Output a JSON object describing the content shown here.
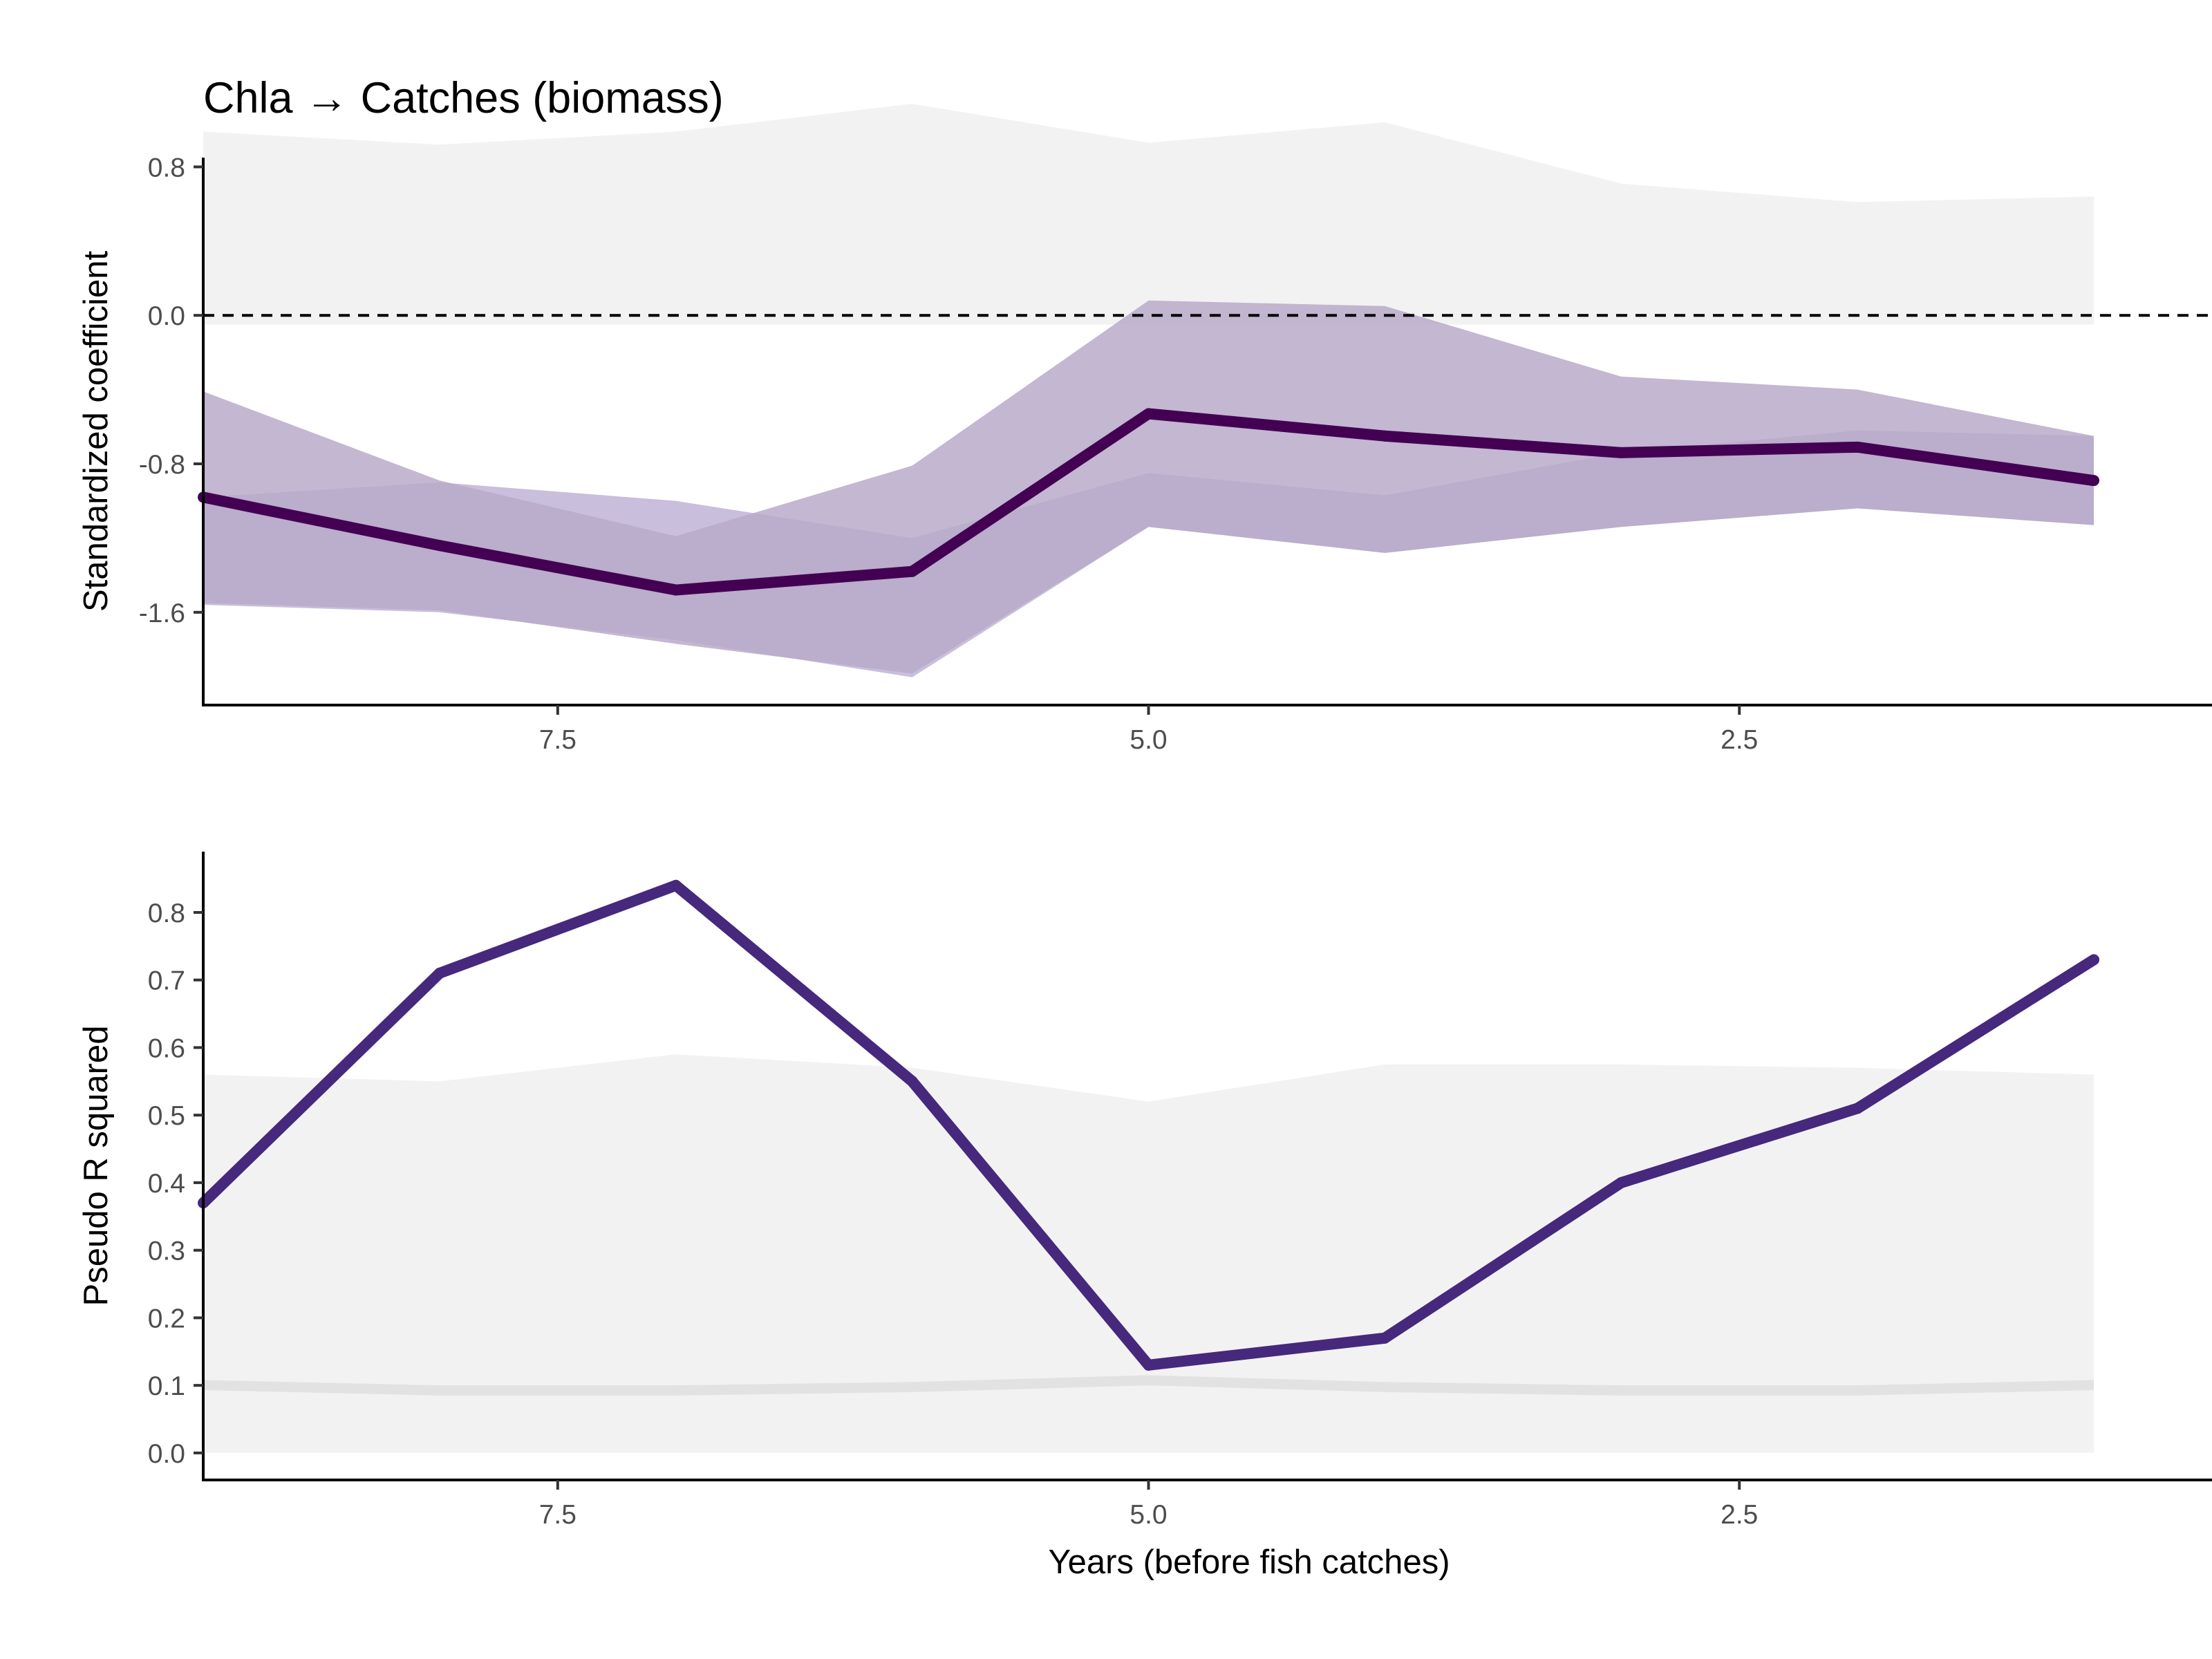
{
  "title": "Chla → Catches (biomass)",
  "colors": {
    "null_band": "#f2f2f2",
    "null_band_inner": "#e2e2e2",
    "ci_outer": "#c9bedb",
    "ci_inner": "#b8aac9",
    "coef_line": "#440154",
    "r2_line": "#46287d",
    "zero_line": "#000000",
    "axis": "#000000"
  },
  "chart_data": [
    {
      "type": "line",
      "panel": "top",
      "xlabel": "",
      "ylabel": "Standardized coefficient",
      "x_reversed": true,
      "xlim": [
        0.5,
        9.0
      ],
      "ylim": [
        -2.1,
        0.85
      ],
      "x_ticks": [
        7.5,
        5.0,
        2.5
      ],
      "x_tick_labels": [
        "7.5",
        "5.0",
        "2.5"
      ],
      "y_ticks": [
        0.8,
        0.0,
        -0.8,
        -1.6
      ],
      "y_tick_labels": [
        "0.8",
        "0.0",
        "-0.8",
        "-1.6"
      ],
      "reference_line": 0.0,
      "x": [
        9,
        8,
        7,
        6,
        5,
        4,
        3,
        2,
        1
      ],
      "series": [
        {
          "values": [
            -0.98,
            -1.24,
            -1.48,
            -1.38,
            -0.53,
            -0.65,
            -0.74,
            -0.71,
            -0.89
          ]
        }
      ],
      "ci_wide": {
        "upper": [
          -0.41,
          -0.89,
          -1.19,
          -0.81,
          0.08,
          0.05,
          -0.33,
          -0.4,
          -0.65
        ],
        "lower": [
          -1.55,
          -1.59,
          -1.77,
          -1.93,
          -1.14,
          -1.28,
          -1.14,
          -1.04,
          -1.13
        ]
      },
      "ci_narrow": {
        "upper": [
          -0.98,
          -0.9,
          -1.0,
          -1.2,
          -0.85,
          -0.97,
          -0.74,
          -0.62,
          -0.65
        ],
        "lower": [
          -1.56,
          -1.6,
          -1.75,
          -1.95,
          -1.14,
          -1.28,
          -1.14,
          -1.04,
          -1.13
        ]
      },
      "null_band": {
        "upper": [
          0.99,
          0.92,
          0.99,
          1.14,
          0.93,
          1.04,
          0.71,
          0.61,
          0.64
        ],
        "lower": [
          -0.05,
          -0.05,
          -0.05,
          -0.05,
          -0.05,
          -0.05,
          -0.05,
          -0.05,
          -0.05
        ]
      }
    },
    {
      "type": "line",
      "panel": "bottom",
      "xlabel": "Years (before fish catches)",
      "ylabel": "Pseudo R squared",
      "x_reversed": true,
      "xlim": [
        0.5,
        9.0
      ],
      "ylim": [
        -0.04,
        0.89
      ],
      "x_ticks": [
        7.5,
        5.0,
        2.5
      ],
      "x_tick_labels": [
        "7.5",
        "5.0",
        "2.5"
      ],
      "y_ticks": [
        0.0,
        0.1,
        0.2,
        0.3,
        0.4,
        0.5,
        0.6,
        0.7,
        0.8
      ],
      "y_tick_labels": [
        "0.0",
        "0.1",
        "0.2",
        "0.3",
        "0.4",
        "0.5",
        "0.6",
        "0.7",
        "0.8"
      ],
      "x": [
        9,
        8,
        7,
        6,
        5,
        4,
        3,
        2,
        1
      ],
      "series": [
        {
          "values": [
            0.37,
            0.71,
            0.84,
            0.55,
            0.13,
            0.17,
            0.4,
            0.51,
            0.73
          ]
        }
      ],
      "null_band": {
        "upper": [
          0.56,
          0.55,
          0.59,
          0.57,
          0.52,
          0.575,
          0.575,
          0.57,
          0.56
        ],
        "lower": [
          0.0,
          0.0,
          0.0,
          0.0,
          0.0,
          0.0,
          0.0,
          0.0,
          0.0
        ]
      },
      "null_band_inner": {
        "upper": [
          0.108,
          0.1,
          0.1,
          0.105,
          0.115,
          0.105,
          0.1,
          0.1,
          0.108
        ],
        "lower": [
          0.093,
          0.085,
          0.085,
          0.09,
          0.1,
          0.09,
          0.085,
          0.085,
          0.093
        ]
      }
    }
  ]
}
